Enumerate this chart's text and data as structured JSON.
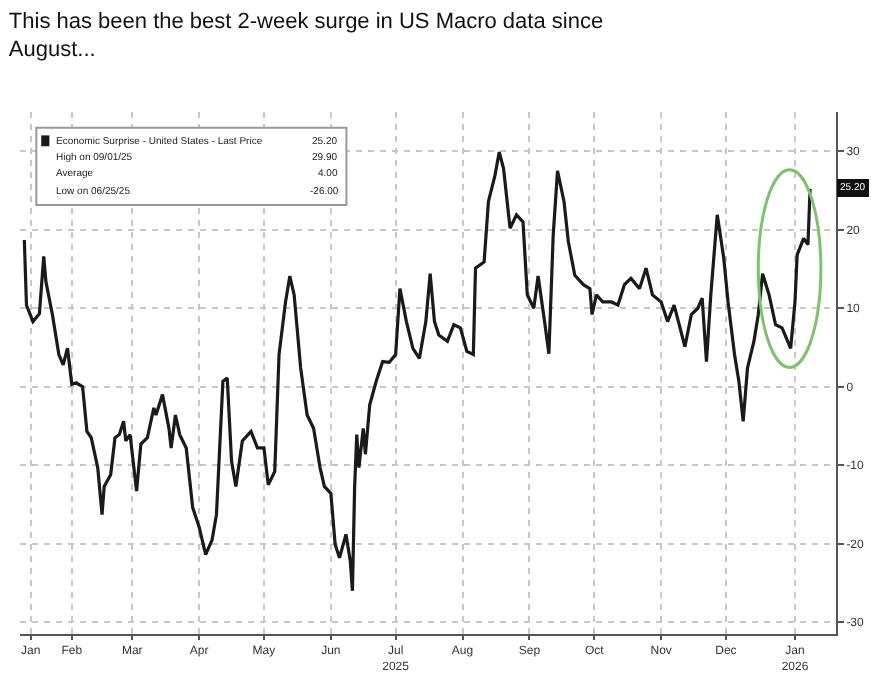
{
  "chart_data": {
    "type": "line",
    "title": "This has been the best 2-week surge in US Macro data since\nAugust...",
    "x": [
      "2025-01-24",
      "2025-01-25",
      "2025-01-28",
      "2025-01-31",
      "2025-02-02",
      "2025-02-03",
      "2025-02-06",
      "2025-02-09",
      "2025-02-11",
      "2025-02-13",
      "2025-02-15",
      "2025-02-17",
      "2025-02-20",
      "2025-02-22",
      "2025-02-24",
      "2025-02-27",
      "2025-03-01",
      "2025-03-02",
      "2025-03-05",
      "2025-03-07",
      "2025-03-09",
      "2025-03-11",
      "2025-03-12",
      "2025-03-14",
      "2025-03-17",
      "2025-03-19",
      "2025-03-22",
      "2025-03-25",
      "2025-03-26",
      "2025-03-29",
      "2025-04-01",
      "2025-04-02",
      "2025-04-04",
      "2025-04-06",
      "2025-04-09",
      "2025-04-12",
      "2025-04-15",
      "2025-04-18",
      "2025-04-21",
      "2025-04-23",
      "2025-04-26",
      "2025-04-28",
      "2025-04-30",
      "2025-05-02",
      "2025-05-05",
      "2025-05-09",
      "2025-05-12",
      "2025-05-15",
      "2025-05-17",
      "2025-05-20",
      "2025-05-22",
      "2025-05-25",
      "2025-05-27",
      "2025-05-29",
      "2025-06-01",
      "2025-06-04",
      "2025-06-07",
      "2025-06-10",
      "2025-06-12",
      "2025-06-15",
      "2025-06-17",
      "2025-06-19",
      "2025-06-22",
      "2025-06-24",
      "2025-06-25",
      "2025-06-26",
      "2025-06-27",
      "2025-06-28",
      "2025-06-30",
      "2025-07-01",
      "2025-07-03",
      "2025-07-06",
      "2025-07-09",
      "2025-07-12",
      "2025-07-15",
      "2025-07-17",
      "2025-07-20",
      "2025-07-23",
      "2025-07-26",
      "2025-07-29",
      "2025-07-31",
      "2025-08-02",
      "2025-08-04",
      "2025-08-08",
      "2025-08-11",
      "2025-08-14",
      "2025-08-17",
      "2025-08-20",
      "2025-08-21",
      "2025-08-25",
      "2025-08-27",
      "2025-08-30",
      "2025-09-01",
      "2025-09-03",
      "2025-09-06",
      "2025-09-09",
      "2025-09-12",
      "2025-09-14",
      "2025-09-17",
      "2025-09-19",
      "2025-09-22",
      "2025-09-24",
      "2025-09-26",
      "2025-09-28",
      "2025-10-01",
      "2025-10-03",
      "2025-10-06",
      "2025-10-10",
      "2025-10-13",
      "2025-10-14",
      "2025-10-16",
      "2025-10-19",
      "2025-10-23",
      "2025-10-26",
      "2025-10-29",
      "2025-11-01",
      "2025-11-05",
      "2025-11-08",
      "2025-11-11",
      "2025-11-15",
      "2025-11-18",
      "2025-11-21",
      "2025-11-23",
      "2025-11-26",
      "2025-11-29",
      "2025-12-02",
      "2025-12-04",
      "2025-12-06",
      "2025-12-08",
      "2025-12-11",
      "2025-12-14",
      "2025-12-16",
      "2025-12-19",
      "2025-12-21",
      "2025-12-23",
      "2025-12-25",
      "2025-12-28",
      "2025-12-30",
      "2026-01-01",
      "2026-01-04",
      "2026-01-07",
      "2026-01-10",
      "2026-01-14",
      "2026-01-16",
      "2026-01-17",
      "2026-01-20",
      "2026-01-22",
      "2026-01-23"
    ],
    "series": [
      {
        "name": "Economic Surprise - United States - Last Price",
        "color": "#1a1a1a",
        "values": [
          18.7,
          10.4,
          8.3,
          9.3,
          16.6,
          13.4,
          9.2,
          4.1,
          2.8,
          4.9,
          0.3,
          0.5,
          0,
          -5.7,
          -6.5,
          -10.3,
          -16.3,
          -12.7,
          -11.2,
          -6.5,
          -6.1,
          -4.4,
          -6.9,
          -6.1,
          -13.3,
          -7.3,
          -6.5,
          -2.7,
          -3.6,
          -1.0,
          -5.3,
          -7.8,
          -3.6,
          -6.1,
          -7.8,
          -15.4,
          -17.9,
          -21.4,
          -19.5,
          -16.3,
          0.7,
          1.1,
          -9.5,
          -12.7,
          -6.9,
          -5.7,
          -7.8,
          -7.8,
          -12.5,
          -10.8,
          4.1,
          10.8,
          14.1,
          11.7,
          2.4,
          -3.6,
          -5.3,
          -10.3,
          -12.7,
          -13.6,
          -20.1,
          -21.8,
          -18.8,
          -22.2,
          -26.0,
          -12.9,
          -6.1,
          -10.3,
          -5.3,
          -8.6,
          -2.3,
          0.7,
          3.2,
          3.1,
          4.1,
          12.5,
          8.3,
          4.9,
          3.6,
          8.3,
          14.4,
          8.3,
          6.6,
          5.8,
          7.9,
          7.5,
          4.5,
          4.1,
          15.1,
          15.9,
          23.6,
          26.9,
          29.9,
          27.8,
          20.2,
          21.9,
          21.0,
          11.7,
          10.0,
          14.1,
          8.3,
          4.2,
          19.3,
          27.5,
          23.6,
          18.5,
          14.2,
          13.0,
          12.5,
          9.2,
          11.7,
          10.8,
          10.8,
          10.4,
          13.0,
          13.8,
          12.5,
          15.1,
          11.7,
          10.8,
          8.3,
          10.4,
          8.3,
          5.1,
          9.2,
          10.0,
          11.3,
          3.2,
          11.7,
          21.9,
          16.4,
          10.8,
          4.1,
          0.7,
          -4.4,
          2.4,
          5.8,
          9.2,
          14.4,
          11.7,
          7.9,
          7.5,
          4.9,
          10.8,
          16.8,
          18.9,
          18.1,
          25.2
        ]
      }
    ],
    "annotations": [
      "25.20",
      "High on 09/01/25",
      "29.90",
      "Average",
      "4.00",
      "Low on 06/25/25",
      "-26.00",
      {
        "text": "25.20",
        "y": 25.2
      }
    ],
    "xlim": [
      "2025-01-22",
      "2026-02-04"
    ],
    "xticks": [
      {
        "value": "2025-01-27",
        "label": "Jan"
      },
      {
        "value": "2025-02-15",
        "label": "Feb"
      },
      {
        "value": "2025-03-15",
        "label": "Mar"
      },
      {
        "value": "2025-04-15",
        "label": "Apr"
      },
      {
        "value": "2025-05-15",
        "label": "May"
      },
      {
        "value": "2025-06-15",
        "label": "Jun"
      },
      {
        "value": "2025-07-15",
        "label": "Jul\n2025"
      },
      {
        "value": "2025-08-15",
        "label": "Aug"
      },
      {
        "value": "2025-09-15",
        "label": "Sep"
      },
      {
        "value": "2025-10-15",
        "label": "Oct"
      },
      {
        "value": "2025-11-15",
        "label": "Nov"
      },
      {
        "value": "2025-12-15",
        "label": "Dec"
      },
      {
        "value": "2026-01-16",
        "label": "Jan\n2026"
      }
    ],
    "ylim": [
      -31.5,
      35
    ],
    "yticks": [
      -30,
      -20,
      -10,
      0,
      10,
      20,
      30
    ],
    "grid": true,
    "legend": "top left",
    "marker": "none",
    "line_style": "solid"
  }
}
